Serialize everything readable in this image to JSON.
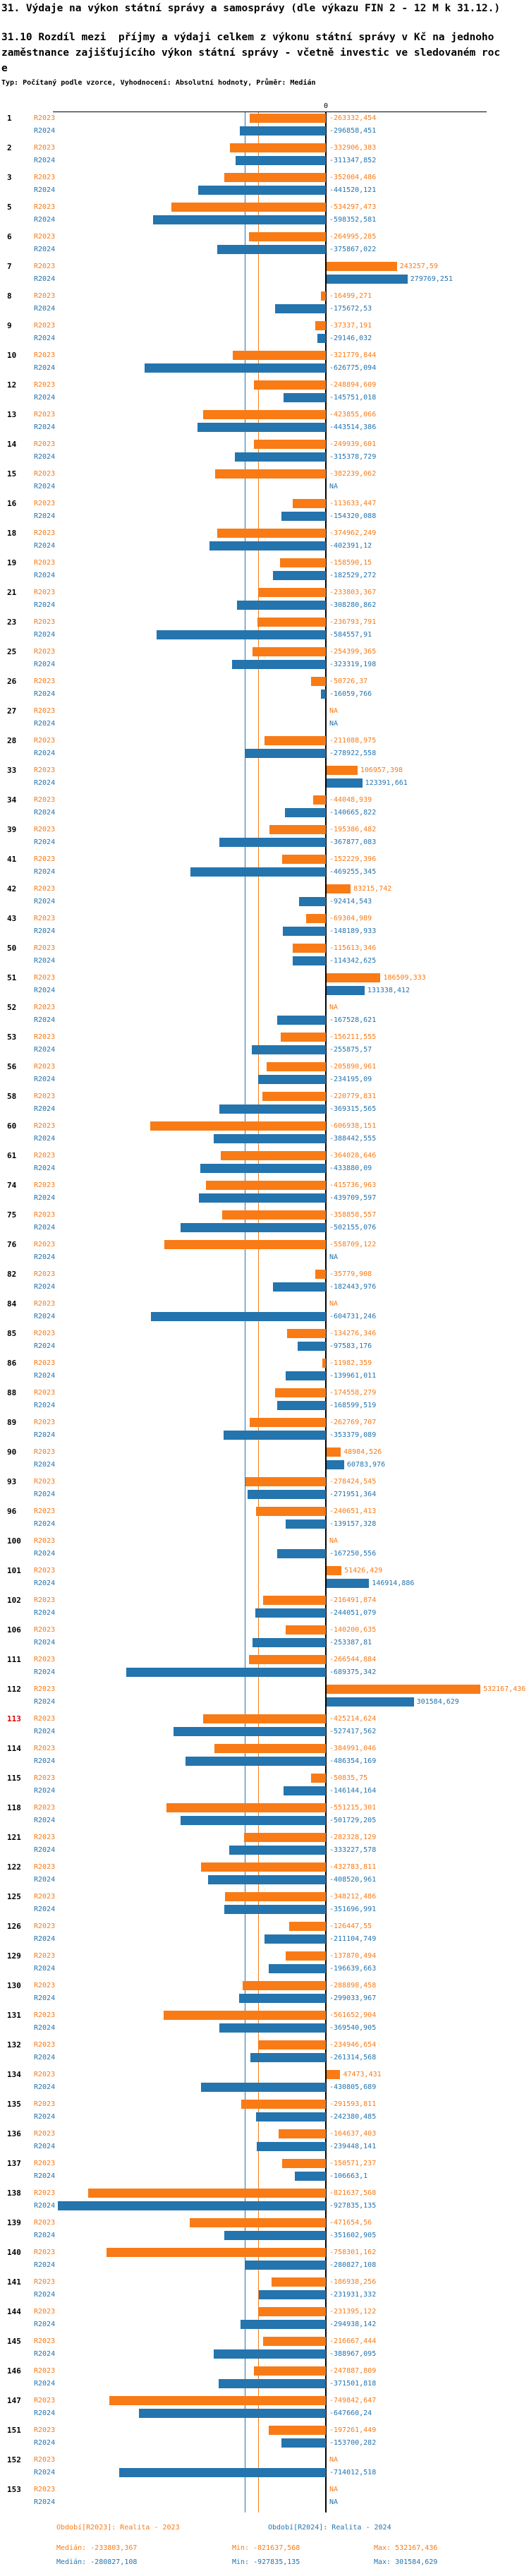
{
  "header": {
    "title": "31. Výdaje na výkon státní správy a samosprávy (dle výkazu FIN 2 - 12 M k 31.12.)",
    "subtitle_lines": [
      "31.10 Rozdíl mezi  příjmy a výdaji celkem z výkonu státní správy v Kč na jednoho",
      "zaměstnance zajišťujícího výkon státní správy - včetně investic ve sledovaném roc",
      "e"
    ],
    "meta": "Typ: Počítaný podle vzorce, Vyhodnocení: Absolutní hodnoty, Průměr: Medián"
  },
  "footer": {
    "legend_2023": "Období[R2023]: Realita - 2023",
    "legend_2024": "Období[R2024]: Realita - 2024",
    "stats_2023": {
      "median": "Medián: -233803,367",
      "min": "Min: -821637,568",
      "max": "Max: 532167,436"
    },
    "stats_2024": {
      "median": "Medián: -280827,108",
      "min": "Min: -927835,135",
      "max": "Max: 301584,629"
    }
  },
  "chart_data": {
    "type": "bar",
    "orientation": "horizontal",
    "unit": "Kč",
    "zero_label": "0",
    "series_labels": {
      "r2023": "R2023",
      "r2024": "R2024"
    },
    "colors": {
      "r2023": "#f97b16",
      "r2024": "#2474ae",
      "highlight_row_number": "#e10000",
      "axis": "#000000"
    },
    "median_2023": -233803.367,
    "median_2024": -280827.108,
    "min_2023": -821637.568,
    "max_2023": 532167.436,
    "min_2024": -927835.135,
    "max_2024": 301584.629,
    "na_text": "NA",
    "rows": [
      {
        "n": "1",
        "r2023": "-263332,454",
        "r2024": "-296858,451"
      },
      {
        "n": "2",
        "r2023": "-332906,383",
        "r2024": "-311347,852"
      },
      {
        "n": "3",
        "r2023": "-352004,486",
        "r2024": "-441520,121"
      },
      {
        "n": "5",
        "r2023": "-534297,473",
        "r2024": "-598352,581"
      },
      {
        "n": "6",
        "r2023": "-264995,285",
        "r2024": "-375867,022"
      },
      {
        "n": "7",
        "r2023": "243257,59",
        "r2024": "279769,251"
      },
      {
        "n": "8",
        "r2023": "-16499,271",
        "r2024": "-175672,53"
      },
      {
        "n": "9",
        "r2023": "-37337,191",
        "r2024": "-29146,032"
      },
      {
        "n": "10",
        "r2023": "-321779,844",
        "r2024": "-626775,094"
      },
      {
        "n": "12",
        "r2023": "-248894,609",
        "r2024": "-145751,018"
      },
      {
        "n": "13",
        "r2023": "-423855,066",
        "r2024": "-443514,386"
      },
      {
        "n": "14",
        "r2023": "-249939,601",
        "r2024": "-315378,729"
      },
      {
        "n": "15",
        "r2023": "-382239,062",
        "r2024": "NA"
      },
      {
        "n": "16",
        "r2023": "-113633,447",
        "r2024": "-154320,088"
      },
      {
        "n": "18",
        "r2023": "-374962,249",
        "r2024": "-402391,12"
      },
      {
        "n": "19",
        "r2023": "-158590,15",
        "r2024": "-182529,272"
      },
      {
        "n": "21",
        "r2023": "-233803,367",
        "r2024": "-308280,862"
      },
      {
        "n": "23",
        "r2023": "-236793,791",
        "r2024": "-584557,91"
      },
      {
        "n": "25",
        "r2023": "-254399,365",
        "r2024": "-323319,198"
      },
      {
        "n": "26",
        "r2023": "-50726,37",
        "r2024": "-16059,766"
      },
      {
        "n": "27",
        "r2023": "NA",
        "r2024": "NA"
      },
      {
        "n": "28",
        "r2023": "-211088,975",
        "r2024": "-278922,558"
      },
      {
        "n": "33",
        "r2023": "106957,398",
        "r2024": "123391,661"
      },
      {
        "n": "34",
        "r2023": "-44048,939",
        "r2024": "-140665,822"
      },
      {
        "n": "39",
        "r2023": "-195386,482",
        "r2024": "-367877,083"
      },
      {
        "n": "41",
        "r2023": "-152229,396",
        "r2024": "-469255,345"
      },
      {
        "n": "42",
        "r2023": "83215,742",
        "r2024": "-92414,543"
      },
      {
        "n": "43",
        "r2023": "-69304,989",
        "r2024": "-148189,933"
      },
      {
        "n": "50",
        "r2023": "-115613,346",
        "r2024": "-114342,625"
      },
      {
        "n": "51",
        "r2023": "186509,333",
        "r2024": "131338,412"
      },
      {
        "n": "52",
        "r2023": "NA",
        "r2024": "-167528,621"
      },
      {
        "n": "53",
        "r2023": "-156211,555",
        "r2024": "-255875,57"
      },
      {
        "n": "56",
        "r2023": "-205890,961",
        "r2024": "-234195,09"
      },
      {
        "n": "58",
        "r2023": "-220779,831",
        "r2024": "-369315,565"
      },
      {
        "n": "60",
        "r2023": "-606938,151",
        "r2024": "-388442,555"
      },
      {
        "n": "61",
        "r2023": "-364028,646",
        "r2024": "-433880,09"
      },
      {
        "n": "74",
        "r2023": "-415736,963",
        "r2024": "-439709,597"
      },
      {
        "n": "75",
        "r2023": "-358858,557",
        "r2024": "-502155,076"
      },
      {
        "n": "76",
        "r2023": "-558709,122",
        "r2024": "NA"
      },
      {
        "n": "82",
        "r2023": "-35779,908",
        "r2024": "-182443,976"
      },
      {
        "n": "84",
        "r2023": "NA",
        "r2024": "-604731,246"
      },
      {
        "n": "85",
        "r2023": "-134276,346",
        "r2024": "-97583,176"
      },
      {
        "n": "86",
        "r2023": "-11982,359",
        "r2024": "-139961,011"
      },
      {
        "n": "88",
        "r2023": "-174558,279",
        "r2024": "-168599,519"
      },
      {
        "n": "89",
        "r2023": "-262769,707",
        "r2024": "-353379,089"
      },
      {
        "n": "90",
        "r2023": "48984,526",
        "r2024": "60783,976"
      },
      {
        "n": "93",
        "r2023": "-278424,545",
        "r2024": "-271951,364"
      },
      {
        "n": "96",
        "r2023": "-240651,413",
        "r2024": "-139157,328"
      },
      {
        "n": "100",
        "r2023": "NA",
        "r2024": "-167250,556"
      },
      {
        "n": "101",
        "r2023": "51426,429",
        "r2024": "146914,886"
      },
      {
        "n": "102",
        "r2023": "-216491,874",
        "r2024": "-244051,079"
      },
      {
        "n": "106",
        "r2023": "-140200,635",
        "r2024": "-253387,81"
      },
      {
        "n": "111",
        "r2023": "-266544,884",
        "r2024": "-689375,342"
      },
      {
        "n": "112",
        "r2023": "532167,436",
        "r2024": "301584,629"
      },
      {
        "n": "113",
        "highlight": true,
        "r2023": "-425214,624",
        "r2024": "-527417,562"
      },
      {
        "n": "114",
        "r2023": "-384991,046",
        "r2024": "-486354,169"
      },
      {
        "n": "115",
        "r2023": "-50835,75",
        "r2024": "-146144,164"
      },
      {
        "n": "118",
        "r2023": "-551215,301",
        "r2024": "-501729,205"
      },
      {
        "n": "121",
        "r2023": "-282328,129",
        "r2024": "-333227,578"
      },
      {
        "n": "122",
        "r2023": "-432783,811",
        "r2024": "-408520,961"
      },
      {
        "n": "125",
        "r2023": "-348212,486",
        "r2024": "-351696,991"
      },
      {
        "n": "126",
        "r2023": "-126447,55",
        "r2024": "-211104,749"
      },
      {
        "n": "129",
        "r2023": "-137870,494",
        "r2024": "-196639,663"
      },
      {
        "n": "130",
        "r2023": "-288898,458",
        "r2024": "-299033,967"
      },
      {
        "n": "131",
        "r2023": "-561652,904",
        "r2024": "-369540,905"
      },
      {
        "n": "132",
        "r2023": "-234946,654",
        "r2024": "-261314,568"
      },
      {
        "n": "134",
        "r2023": "47473,431",
        "r2024": "-430805,689"
      },
      {
        "n": "135",
        "r2023": "-291593,811",
        "r2024": "-242380,485"
      },
      {
        "n": "136",
        "r2023": "-164637,403",
        "r2024": "-239448,141"
      },
      {
        "n": "137",
        "r2023": "-150571,237",
        "r2024": "-106663,1"
      },
      {
        "n": "138",
        "r2023": "-821637,568",
        "r2024": "-927835,135"
      },
      {
        "n": "139",
        "r2023": "-471654,56",
        "r2024": "-351602,905"
      },
      {
        "n": "140",
        "r2023": "-758301,162",
        "r2024": "-280827,108"
      },
      {
        "n": "141",
        "r2023": "-186938,256",
        "r2024": "-231931,332"
      },
      {
        "n": "144",
        "r2023": "-231395,122",
        "r2024": "-294938,142"
      },
      {
        "n": "145",
        "r2023": "-216667,444",
        "r2024": "-388967,095"
      },
      {
        "n": "146",
        "r2023": "-247887,809",
        "r2024": "-371501,818"
      },
      {
        "n": "147",
        "r2023": "-749842,647",
        "r2024": "-647660,24"
      },
      {
        "n": "151",
        "r2023": "-197261,449",
        "r2024": "-153700,282"
      },
      {
        "n": "152",
        "r2023": "NA",
        "r2024": "-714012,518"
      },
      {
        "n": "153",
        "r2023": "NA",
        "r2024": "NA"
      }
    ]
  }
}
